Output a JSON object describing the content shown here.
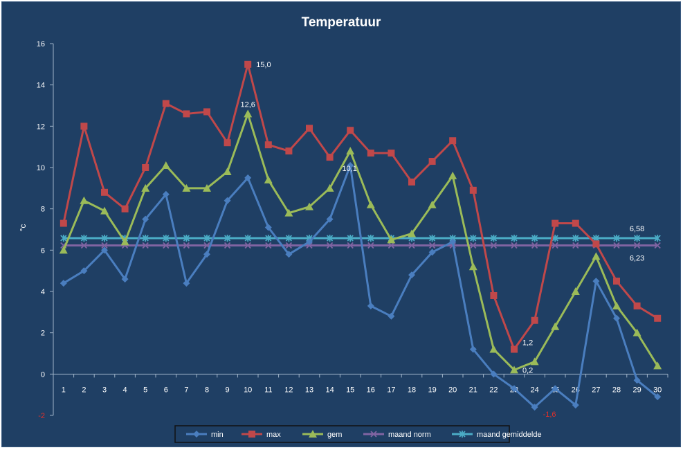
{
  "chart_data": {
    "type": "line",
    "title": "Temperatuur",
    "ylabel": "°c",
    "xlabel": "",
    "ylim": [
      -2,
      16
    ],
    "yticks": [
      -2,
      0,
      2,
      4,
      6,
      8,
      10,
      12,
      14,
      16
    ],
    "categories": [
      "1",
      "2",
      "3",
      "4",
      "5",
      "6",
      "7",
      "8",
      "9",
      "10",
      "11",
      "12",
      "13",
      "14",
      "15",
      "16",
      "17",
      "18",
      "19",
      "20",
      "21",
      "22",
      "23",
      "24",
      "25",
      "26",
      "27",
      "28",
      "29",
      "30"
    ],
    "series": [
      {
        "name": "min",
        "color": "#4a7ebf",
        "marker": "diamond",
        "values": [
          4.4,
          5.0,
          6.0,
          4.6,
          7.5,
          8.7,
          4.4,
          5.8,
          8.4,
          9.5,
          7.1,
          5.8,
          6.4,
          7.5,
          10.1,
          3.3,
          2.8,
          4.8,
          5.9,
          6.4,
          1.2,
          0.0,
          -0.7,
          -1.6,
          -0.7,
          -1.5,
          4.5,
          2.7,
          -0.3,
          -1.1
        ]
      },
      {
        "name": "max",
        "color": "#c0484a",
        "marker": "square",
        "values": [
          7.3,
          12.0,
          8.8,
          8.0,
          10.0,
          13.1,
          12.6,
          12.7,
          11.2,
          15.0,
          11.1,
          10.8,
          11.9,
          10.5,
          11.8,
          10.7,
          10.7,
          9.3,
          10.3,
          11.3,
          8.9,
          3.8,
          1.2,
          2.6,
          7.3,
          7.3,
          6.3,
          4.5,
          3.3,
          2.7
        ]
      },
      {
        "name": "gem",
        "color": "#9bbb59",
        "marker": "triangle",
        "values": [
          6.0,
          8.4,
          7.9,
          6.4,
          9.0,
          10.1,
          9.0,
          9.0,
          9.8,
          12.6,
          9.4,
          7.8,
          8.1,
          9.0,
          10.8,
          8.2,
          6.5,
          6.8,
          8.2,
          9.6,
          5.2,
          1.2,
          0.2,
          0.6,
          2.3,
          4.0,
          5.7,
          3.3,
          2.0,
          0.4
        ]
      },
      {
        "name": "maand norm",
        "color": "#8064a2",
        "marker": "x",
        "values": [
          6.23,
          6.23,
          6.23,
          6.23,
          6.23,
          6.23,
          6.23,
          6.23,
          6.23,
          6.23,
          6.23,
          6.23,
          6.23,
          6.23,
          6.23,
          6.23,
          6.23,
          6.23,
          6.23,
          6.23,
          6.23,
          6.23,
          6.23,
          6.23,
          6.23,
          6.23,
          6.23,
          6.23,
          6.23,
          6.23
        ]
      },
      {
        "name": "maand gemiddelde",
        "color": "#4bacc6",
        "marker": "star",
        "values": [
          6.58,
          6.58,
          6.58,
          6.58,
          6.58,
          6.58,
          6.58,
          6.58,
          6.58,
          6.58,
          6.58,
          6.58,
          6.58,
          6.58,
          6.58,
          6.58,
          6.58,
          6.58,
          6.58,
          6.58,
          6.58,
          6.58,
          6.58,
          6.58,
          6.58,
          6.58,
          6.58,
          6.58,
          6.58,
          6.58
        ]
      }
    ],
    "annotations": [
      {
        "text": "15,0",
        "category": "10",
        "value": 15.0,
        "color": "#ffffff",
        "anchor": "right"
      },
      {
        "text": "12,6",
        "category": "10",
        "value": 12.6,
        "color": "#ffffff",
        "anchor": "above"
      },
      {
        "text": "10,1",
        "category": "15",
        "value": 10.1,
        "color": "#ffffff",
        "anchor": "below-left"
      },
      {
        "text": "1,2",
        "category": "23",
        "value": 1.2,
        "color": "#ffffff",
        "anchor": "right-above"
      },
      {
        "text": "0,2",
        "category": "23",
        "value": 0.2,
        "color": "#ffffff",
        "anchor": "right"
      },
      {
        "text": "-1,6",
        "category": "24",
        "value": -1.6,
        "color": "#e0302a",
        "anchor": "right-below"
      },
      {
        "text": "6,58",
        "category": "29",
        "value": 6.58,
        "color": "#ffffff",
        "anchor": "above"
      },
      {
        "text": "6,23",
        "category": "29",
        "value": 6.23,
        "color": "#ffffff",
        "anchor": "below"
      }
    ],
    "neg_tick_color": "#e0302a",
    "grid": false,
    "legend_position": "bottom"
  }
}
